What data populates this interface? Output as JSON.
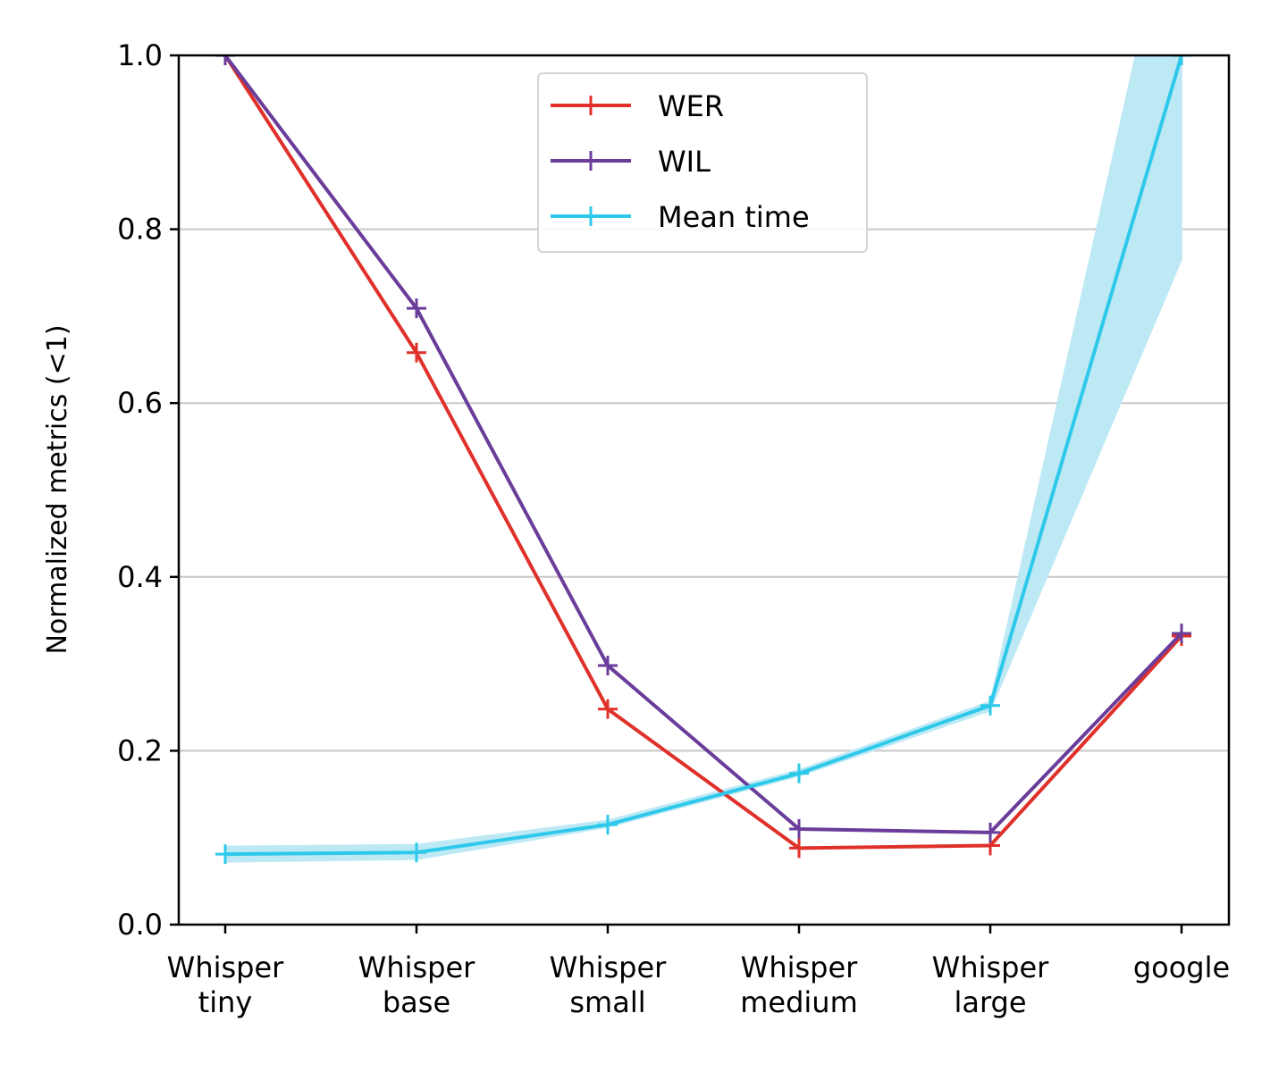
{
  "chart_data": {
    "type": "line",
    "title": "",
    "xlabel": "",
    "ylabel": "Normalized metrics (<1)",
    "categories": [
      [
        "Whisper",
        "tiny"
      ],
      [
        "Whisper",
        "base"
      ],
      [
        "Whisper",
        "small"
      ],
      [
        "Whisper",
        "medium"
      ],
      [
        "Whisper",
        "large"
      ],
      [
        "google"
      ]
    ],
    "ylim": [
      0.0,
      1.0
    ],
    "yticks": [
      0.0,
      0.2,
      0.4,
      0.6,
      0.8,
      1.0
    ],
    "ytick_labels": [
      "0.0",
      "0.2",
      "0.4",
      "0.6",
      "0.8",
      "1.0"
    ],
    "grid": "horizontal",
    "legend_position": "top-center",
    "series": [
      {
        "name": "WER",
        "color": "#e0302a",
        "marker": "plus",
        "values": [
          1.0,
          0.658,
          0.248,
          0.088,
          0.091,
          0.332
        ]
      },
      {
        "name": "WIL",
        "color": "#6a3d9a",
        "marker": "plus",
        "values": [
          1.0,
          0.709,
          0.298,
          0.11,
          0.106,
          0.335
        ]
      },
      {
        "name": "Mean time",
        "color": "#2ec9ea",
        "band_color": "#bde9f5",
        "marker": "plus",
        "values": [
          0.081,
          0.083,
          0.115,
          0.174,
          0.252,
          1.0
        ],
        "band_low": [
          0.072,
          0.075,
          0.112,
          0.171,
          0.246,
          0.765
        ],
        "band_high": [
          0.09,
          0.092,
          0.12,
          0.178,
          0.257,
          1.235
        ]
      }
    ]
  }
}
